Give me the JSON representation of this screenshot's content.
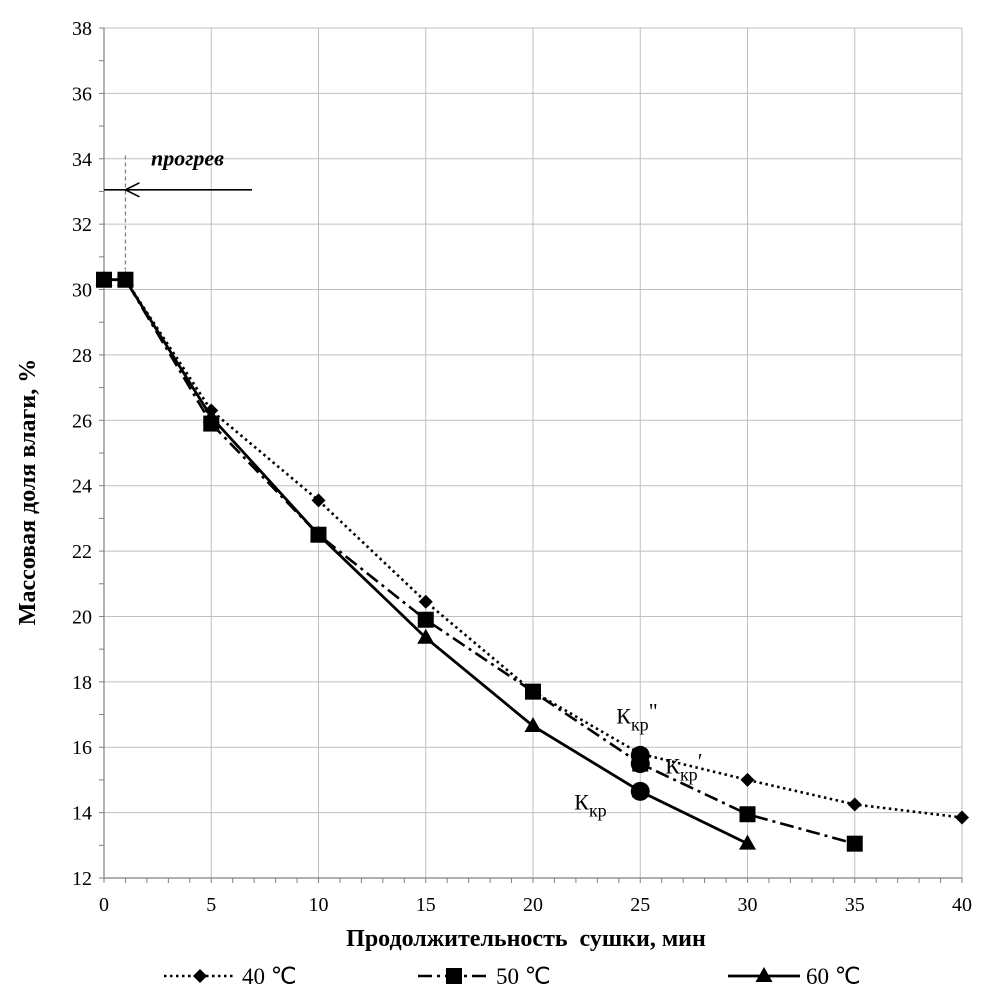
{
  "chart_data": {
    "type": "line",
    "xlabel": "Продолжительность  сушки, мин",
    "ylabel": "Массовая доля влаги, %",
    "xlim": [
      0,
      40
    ],
    "ylim": [
      12,
      38
    ],
    "xticks": [
      0,
      5,
      10,
      15,
      20,
      25,
      30,
      35,
      40
    ],
    "yticks": [
      12,
      14,
      16,
      18,
      20,
      22,
      24,
      26,
      28,
      30,
      32,
      34,
      36,
      38
    ],
    "grid": true,
    "legend_position": "bottom",
    "series": [
      {
        "name": "40  ℃",
        "marker": "diamond",
        "line": "dotted",
        "points": [
          [
            0,
            30.3
          ],
          [
            1,
            30.3
          ],
          [
            5,
            26.3
          ],
          [
            10,
            23.55
          ],
          [
            15,
            20.45
          ],
          [
            20,
            17.7
          ],
          [
            25,
            15.8
          ],
          [
            30,
            15.0
          ],
          [
            35,
            14.25
          ],
          [
            40,
            13.85
          ]
        ]
      },
      {
        "name": "50  ℃",
        "marker": "square",
        "line": "dash-dot",
        "points": [
          [
            0,
            30.3
          ],
          [
            1,
            30.3
          ],
          [
            5,
            25.9
          ],
          [
            10,
            22.5
          ],
          [
            15,
            19.9
          ],
          [
            20,
            17.7
          ],
          [
            25,
            15.5
          ],
          [
            30,
            13.95
          ],
          [
            35,
            13.05
          ]
        ]
      },
      {
        "name": "60  ℃",
        "marker": "triangle",
        "line": "solid",
        "points": [
          [
            0,
            30.3
          ],
          [
            1,
            30.3
          ],
          [
            5,
            26.1
          ],
          [
            10,
            22.5
          ],
          [
            15,
            19.35
          ],
          [
            20,
            16.65
          ],
          [
            25,
            14.65
          ],
          [
            30,
            13.05
          ]
        ]
      }
    ],
    "critical_points": [
      {
        "label": "К",
        "sub": "кр",
        "sup": "\"",
        "x": 25,
        "y": 15.75
      },
      {
        "label": "К",
        "sub": "кр",
        "sup": "′",
        "x": 25,
        "y": 15.5
      },
      {
        "label": "К",
        "sub": "кр",
        "sup": "",
        "x": 25,
        "y": 14.65
      }
    ],
    "annotations": {
      "heating_label": "прогрев",
      "heating_x": 1,
      "heating_arrow_y": 33.05
    }
  }
}
